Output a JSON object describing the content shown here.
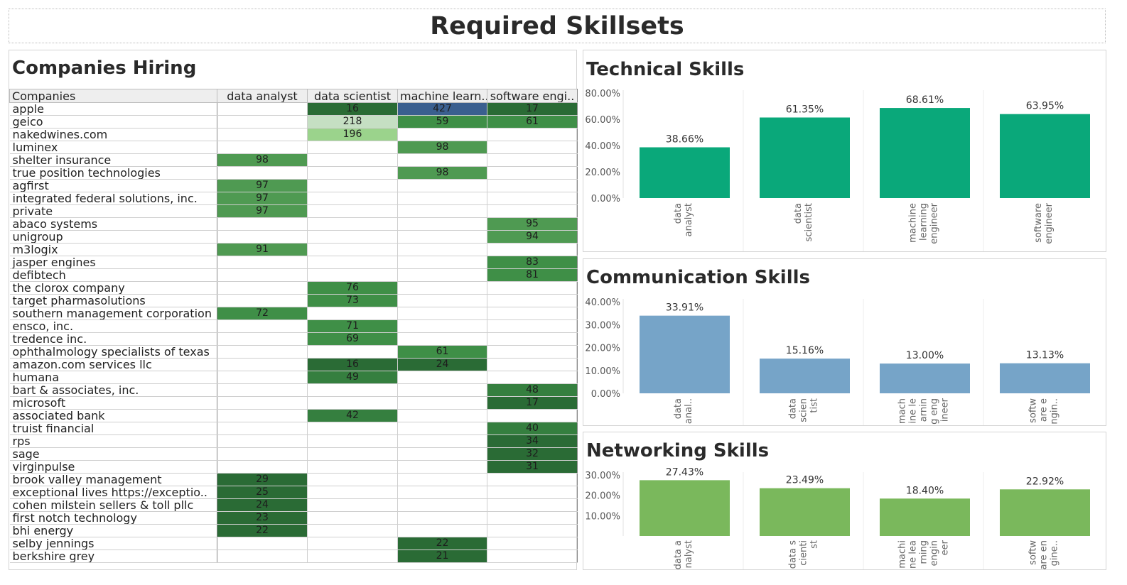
{
  "dashboard_title": "Required Skillsets",
  "colors": {
    "technical": "#0aa87a",
    "communication": "#76a4c8",
    "networking": "#7ab85c"
  },
  "companies_table": {
    "title": "Companies Hiring",
    "headers": [
      "Companies",
      "data analyst",
      "data scientist",
      "machine learn..",
      "software engi.."
    ],
    "rows": [
      {
        "company": "apple",
        "values": [
          null,
          16,
          427,
          17
        ]
      },
      {
        "company": "geico",
        "values": [
          null,
          218,
          59,
          61
        ]
      },
      {
        "company": "nakedwines.com",
        "values": [
          null,
          196,
          null,
          null
        ]
      },
      {
        "company": "luminex",
        "values": [
          null,
          null,
          98,
          null
        ]
      },
      {
        "company": "shelter insurance",
        "values": [
          98,
          null,
          null,
          null
        ]
      },
      {
        "company": "true position technologies",
        "values": [
          null,
          null,
          98,
          null
        ]
      },
      {
        "company": "agfirst",
        "values": [
          97,
          null,
          null,
          null
        ]
      },
      {
        "company": "integrated federal solutions, inc.",
        "values": [
          97,
          null,
          null,
          null
        ]
      },
      {
        "company": "private",
        "values": [
          97,
          null,
          null,
          null
        ]
      },
      {
        "company": "abaco systems",
        "values": [
          null,
          null,
          null,
          95
        ]
      },
      {
        "company": "unigroup",
        "values": [
          null,
          null,
          null,
          94
        ]
      },
      {
        "company": "m3logix",
        "values": [
          91,
          null,
          null,
          null
        ]
      },
      {
        "company": "jasper engines",
        "values": [
          null,
          null,
          null,
          83
        ]
      },
      {
        "company": "defibtech",
        "values": [
          null,
          null,
          null,
          81
        ]
      },
      {
        "company": "the clorox company",
        "values": [
          null,
          76,
          null,
          null
        ]
      },
      {
        "company": "target pharmasolutions",
        "values": [
          null,
          73,
          null,
          null
        ]
      },
      {
        "company": "southern management corporation",
        "values": [
          72,
          null,
          null,
          null
        ]
      },
      {
        "company": "ensco, inc.",
        "values": [
          null,
          71,
          null,
          null
        ]
      },
      {
        "company": "tredence inc.",
        "values": [
          null,
          69,
          null,
          null
        ]
      },
      {
        "company": "ophthalmology specialists of texas",
        "values": [
          null,
          null,
          61,
          null
        ]
      },
      {
        "company": "amazon.com services llc",
        "values": [
          null,
          16,
          24,
          null
        ]
      },
      {
        "company": "humana",
        "values": [
          null,
          49,
          null,
          null
        ]
      },
      {
        "company": "bart & associates, inc.",
        "values": [
          null,
          null,
          null,
          48
        ]
      },
      {
        "company": "microsoft",
        "values": [
          null,
          null,
          null,
          17
        ]
      },
      {
        "company": "associated bank",
        "values": [
          null,
          42,
          null,
          null
        ]
      },
      {
        "company": "truist financial",
        "values": [
          null,
          null,
          null,
          40
        ]
      },
      {
        "company": "rps",
        "values": [
          null,
          null,
          null,
          34
        ]
      },
      {
        "company": "sage",
        "values": [
          null,
          null,
          null,
          32
        ]
      },
      {
        "company": "virginpulse",
        "values": [
          null,
          null,
          null,
          31
        ]
      },
      {
        "company": "brook valley management",
        "values": [
          29,
          null,
          null,
          null
        ]
      },
      {
        "company": "exceptional lives https://exceptio..",
        "values": [
          25,
          null,
          null,
          null
        ]
      },
      {
        "company": "cohen milstein sellers & toll pllc",
        "values": [
          24,
          null,
          null,
          null
        ]
      },
      {
        "company": "first notch technology",
        "values": [
          23,
          null,
          null,
          null
        ]
      },
      {
        "company": "bhi energy",
        "values": [
          22,
          null,
          null,
          null
        ]
      },
      {
        "company": "selby jennings",
        "values": [
          null,
          null,
          22,
          null
        ]
      },
      {
        "company": "berkshire grey",
        "values": [
          null,
          null,
          21,
          null
        ]
      }
    ]
  },
  "chart_data": [
    {
      "type": "bar",
      "title": "Technical Skills",
      "categories": [
        "data analyst",
        "data scientist",
        "machine learning engineer",
        "software engineer"
      ],
      "category_tick_lines": [
        [
          "data",
          "analyst"
        ],
        [
          "data",
          "scientist"
        ],
        [
          "machine",
          "learning",
          "engineer"
        ],
        [
          "software",
          "engineer"
        ]
      ],
      "values": [
        38.66,
        61.35,
        68.61,
        63.95
      ],
      "value_labels": [
        "38.66%",
        "61.35%",
        "68.61%",
        "63.95%"
      ],
      "yticks": [
        "0.00%",
        "20.00%",
        "40.00%",
        "60.00%",
        "80.00%"
      ],
      "ylim": [
        0,
        80
      ],
      "color": "#0aa87a"
    },
    {
      "type": "bar",
      "title": "Communication Skills",
      "categories": [
        "data analyst",
        "data scientist",
        "machine learning engineer",
        "software engineer"
      ],
      "category_tick_lines": [
        [
          "data",
          "anal.."
        ],
        [
          "data",
          "scien",
          "tist"
        ],
        [
          "mach",
          "ine le",
          "arnin",
          "g eng",
          "ineer"
        ],
        [
          "softw",
          "are e",
          "ngin.."
        ]
      ],
      "values": [
        33.91,
        15.16,
        13.0,
        13.13
      ],
      "value_labels": [
        "33.91%",
        "15.16%",
        "13.00%",
        "13.13%"
      ],
      "yticks": [
        "0.00%",
        "10.00%",
        "20.00%",
        "30.00%",
        "40.00%"
      ],
      "ylim": [
        0,
        40
      ],
      "color": "#76a4c8"
    },
    {
      "type": "bar",
      "title": "Networking Skills",
      "categories": [
        "data analyst",
        "data scientist",
        "machine learning engineer",
        "software engineer"
      ],
      "category_tick_lines": [
        [
          "data a",
          "nalyst"
        ],
        [
          "data s",
          "cienti",
          "st"
        ],
        [
          "machi",
          "ne lea",
          "rning",
          "engin",
          "eer"
        ],
        [
          "softw",
          "are en",
          "gine.."
        ]
      ],
      "values": [
        27.43,
        23.49,
        18.4,
        22.92
      ],
      "value_labels": [
        "27.43%",
        "23.49%",
        "18.40%",
        "22.92%"
      ],
      "yticks": [
        "10.00%",
        "20.00%",
        "30.00%"
      ],
      "ylim": [
        0,
        30
      ],
      "color": "#7ab85c"
    }
  ]
}
